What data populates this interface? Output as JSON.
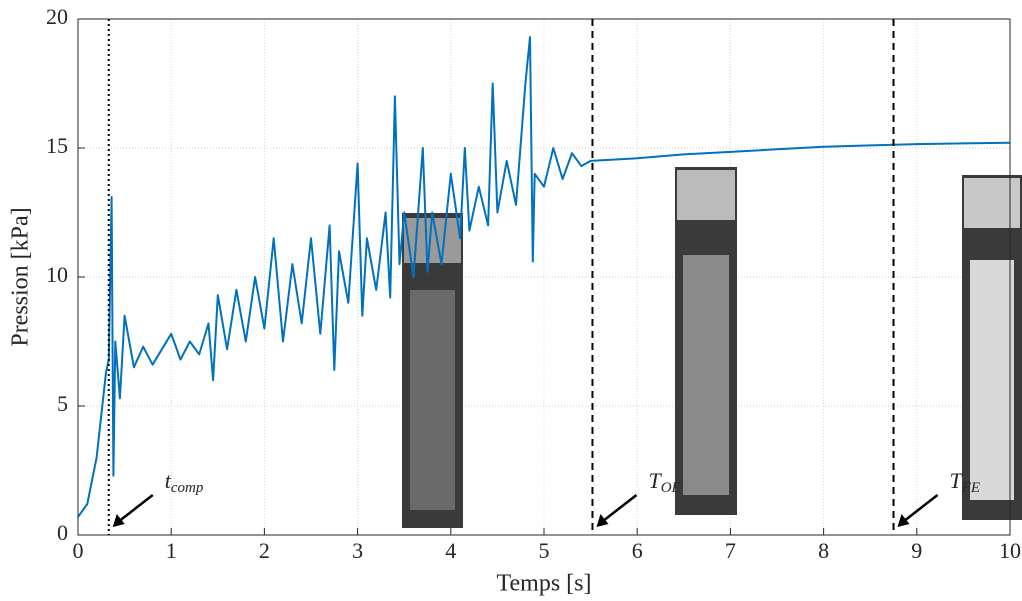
{
  "chart_data": {
    "type": "line",
    "xlabel": "Temps [s]",
    "ylabel": "Pression [kPa]",
    "xlim": [
      0,
      10
    ],
    "ylim": [
      0,
      20
    ],
    "xticks": [
      0,
      1,
      2,
      3,
      4,
      5,
      6,
      7,
      8,
      9,
      10
    ],
    "yticks": [
      0,
      5,
      10,
      15,
      20
    ],
    "grid": true,
    "series": [
      {
        "color": "#0072bd",
        "x": [
          0,
          0.1,
          0.2,
          0.3,
          0.33,
          0.36,
          0.38,
          0.4,
          0.45,
          0.5,
          0.6,
          0.7,
          0.8,
          0.9,
          1.0,
          1.1,
          1.2,
          1.3,
          1.4,
          1.45,
          1.5,
          1.6,
          1.7,
          1.8,
          1.9,
          2.0,
          2.1,
          2.2,
          2.3,
          2.4,
          2.5,
          2.6,
          2.7,
          2.75,
          2.8,
          2.9,
          3.0,
          3.05,
          3.1,
          3.2,
          3.3,
          3.35,
          3.4,
          3.45,
          3.5,
          3.6,
          3.7,
          3.75,
          3.8,
          3.9,
          4.0,
          4.1,
          4.15,
          4.2,
          4.3,
          4.4,
          4.45,
          4.5,
          4.6,
          4.7,
          4.8,
          4.85,
          4.88,
          4.9,
          5.0,
          5.1,
          5.2,
          5.3,
          5.4,
          5.5,
          6.0,
          6.5,
          7.0,
          7.5,
          8.0,
          8.5,
          9.0,
          9.5,
          10.0
        ],
        "values": [
          0.7,
          1.2,
          3,
          6.3,
          6.8,
          13.1,
          2.3,
          7.5,
          5.3,
          8.5,
          6.5,
          7.3,
          6.6,
          7.2,
          7.8,
          6.8,
          7.5,
          7.0,
          8.2,
          6.0,
          9.3,
          7.2,
          9.5,
          7.5,
          10.0,
          8.0,
          11.5,
          7.5,
          10.5,
          8.2,
          11.5,
          7.8,
          12.0,
          6.4,
          11.0,
          9.0,
          14.4,
          8.5,
          11.5,
          9.5,
          12.5,
          9.2,
          17.0,
          10.5,
          12.5,
          10.0,
          15.0,
          10.2,
          12.5,
          10.5,
          14.0,
          11.5,
          15.0,
          11.8,
          13.5,
          12.0,
          17.5,
          12.5,
          14.5,
          12.8,
          17.5,
          19.3,
          10.6,
          14.0,
          13.5,
          15.0,
          13.8,
          14.8,
          14.3,
          14.5,
          14.6,
          14.75,
          14.85,
          14.95,
          15.05,
          15.1,
          15.15,
          15.18,
          15.2
        ]
      }
    ],
    "markers": [
      {
        "x": 0.33,
        "style": "dotted",
        "label": "t",
        "sub": "comp"
      },
      {
        "x": 5.52,
        "style": "dashed",
        "label": "T",
        "sub": "OE"
      },
      {
        "x": 8.75,
        "style": "dashed",
        "label": "T",
        "sub": "FE"
      }
    ]
  }
}
